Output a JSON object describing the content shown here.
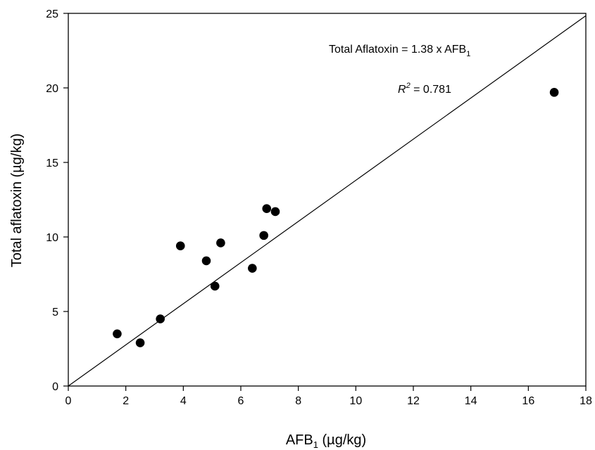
{
  "chart_data": {
    "type": "scatter",
    "title": "",
    "xlabel": {
      "main": "AFB",
      "sub": "1",
      "suffix": " (µg/kg)"
    },
    "ylabel": "Total aflatoxin (µg/kg)",
    "xlim": [
      0,
      18
    ],
    "ylim": [
      0,
      25
    ],
    "xticks": [
      0,
      2,
      4,
      6,
      8,
      10,
      12,
      14,
      16,
      18
    ],
    "yticks": [
      0,
      5,
      10,
      15,
      20,
      25
    ],
    "grid": false,
    "series": [
      {
        "points": [
          {
            "x": 1.7,
            "y": 3.5
          },
          {
            "x": 2.5,
            "y": 2.9
          },
          {
            "x": 3.2,
            "y": 4.5
          },
          {
            "x": 3.9,
            "y": 9.4
          },
          {
            "x": 4.8,
            "y": 8.4
          },
          {
            "x": 5.1,
            "y": 6.7
          },
          {
            "x": 5.3,
            "y": 9.6
          },
          {
            "x": 6.4,
            "y": 7.9
          },
          {
            "x": 6.8,
            "y": 10.1
          },
          {
            "x": 6.9,
            "y": 11.9
          },
          {
            "x": 7.2,
            "y": 11.7
          },
          {
            "x": 16.9,
            "y": 19.7
          }
        ],
        "color": "#000000"
      }
    ],
    "fit_line": {
      "x": [
        0,
        18
      ],
      "y": [
        0,
        24.84
      ],
      "color": "#000000"
    },
    "annotations": {
      "equation": {
        "main": "Total Aflatoxin = 1.38 x AFB",
        "sub": "1"
      },
      "r2": {
        "label": "R",
        "sup": "2",
        "value": " = 0.781"
      }
    }
  }
}
